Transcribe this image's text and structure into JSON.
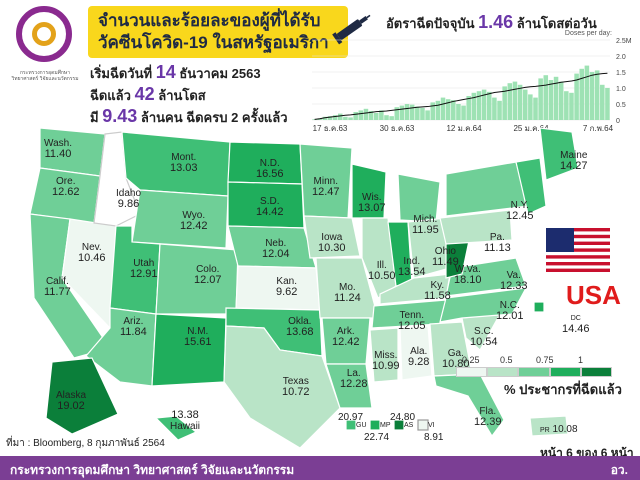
{
  "logo": {
    "caption": "กระทรวงการอุดมศึกษา วิทยาศาสตร์ วิจัยและนวัตกรรม"
  },
  "title": {
    "line1": "จำนวนและร้อยละของผู้ที่ได้รับ",
    "line2": "วัคซีนโควิด-19 ในสหรัฐอเมริกา"
  },
  "rate": {
    "prefix": "อัตราฉีดปัจจุบัน",
    "value": "1.46",
    "suffix": "ล้านโดสต่อวัน"
  },
  "stats": {
    "start_prefix": "เริ่มฉีดวันที่",
    "start_day": "14",
    "start_suffix": "ธันวาคม 2563",
    "doses_prefix": "ฉีดแล้ว",
    "doses_value": "42",
    "doses_suffix": "ล้านโดส",
    "people_prefix": "มี",
    "people_value": "9.43",
    "people_suffix": "ล้านคน ฉีดครบ 2 ครั้งแล้ว"
  },
  "chart_data": {
    "type": "bar",
    "title": "Doses per day",
    "ylabel": "Doses per day",
    "ytick_labels": [
      "2.5M",
      "2.0",
      "1.5",
      "1.0",
      "0.5",
      "0"
    ],
    "xtick_labels": [
      "17 ธ.ค.63",
      "30 ธ.ค.63",
      "12 ม.ค.64",
      "25 ม.ค.64",
      "7 ก.พ.64"
    ],
    "ylim": [
      0,
      2.5
    ],
    "unit": "million doses",
    "values": [
      0.02,
      0.05,
      0.1,
      0.12,
      0.15,
      0.2,
      0.1,
      0.08,
      0.25,
      0.3,
      0.35,
      0.28,
      0.22,
      0.3,
      0.15,
      0.12,
      0.4,
      0.45,
      0.5,
      0.48,
      0.42,
      0.38,
      0.3,
      0.55,
      0.6,
      0.7,
      0.65,
      0.62,
      0.5,
      0.45,
      0.75,
      0.85,
      0.9,
      0.95,
      0.88,
      0.7,
      0.6,
      1.05,
      1.15,
      1.2,
      1.1,
      0.95,
      0.8,
      0.7,
      1.3,
      1.4,
      1.25,
      1.35,
      1.2,
      0.9,
      0.85,
      1.45,
      1.6,
      1.7,
      1.5,
      1.55,
      1.1,
      1.0
    ],
    "moving_average": [
      0.02,
      0.04,
      0.07,
      0.09,
      0.11,
      0.13,
      0.15,
      0.16,
      0.18,
      0.2,
      0.22,
      0.24,
      0.26,
      0.27,
      0.28,
      0.3,
      0.32,
      0.34,
      0.36,
      0.38,
      0.4,
      0.41,
      0.42,
      0.44,
      0.46,
      0.5,
      0.54,
      0.58,
      0.61,
      0.64,
      0.67,
      0.7,
      0.74,
      0.78,
      0.82,
      0.86,
      0.88,
      0.9,
      0.93,
      0.96,
      0.99,
      1.02,
      1.04,
      1.05,
      1.07,
      1.09,
      1.12,
      1.15,
      1.18,
      1.2,
      1.22,
      1.25,
      1.3,
      1.35,
      1.4,
      1.43,
      1.45,
      1.46
    ]
  },
  "states": [
    {
      "name": "Wash.",
      "value": "11.40"
    },
    {
      "name": "Ore.",
      "value": "12.62"
    },
    {
      "name": "Calif.",
      "value": "11.77"
    },
    {
      "name": "Nev.",
      "value": "10.46"
    },
    {
      "name": "Idaho",
      "value": "9.86"
    },
    {
      "name": "Mont.",
      "value": "13.03"
    },
    {
      "name": "Wyo.",
      "value": "12.42"
    },
    {
      "name": "Utah",
      "value": "12.91"
    },
    {
      "name": "Ariz.",
      "value": "11.84"
    },
    {
      "name": "Colo.",
      "value": "12.07"
    },
    {
      "name": "N.M.",
      "value": "15.61"
    },
    {
      "name": "N.D.",
      "value": "16.56"
    },
    {
      "name": "S.D.",
      "value": "14.42"
    },
    {
      "name": "Neb.",
      "value": "12.04"
    },
    {
      "name": "Kan.",
      "value": "9.62"
    },
    {
      "name": "Okla.",
      "value": "13.68"
    },
    {
      "name": "Texas",
      "value": "10.72"
    },
    {
      "name": "Minn.",
      "value": "12.47"
    },
    {
      "name": "Iowa",
      "value": "10.30"
    },
    {
      "name": "Mo.",
      "value": "11.24"
    },
    {
      "name": "Ark.",
      "value": "12.42"
    },
    {
      "name": "La.",
      "value": "12.28"
    },
    {
      "name": "Wis.",
      "value": "13.07"
    },
    {
      "name": "Ill.",
      "value": "10.50"
    },
    {
      "name": "Ind.",
      "value": "13.54"
    },
    {
      "name": "Mich.",
      "value": "11.95"
    },
    {
      "name": "Ohio",
      "value": "11.49"
    },
    {
      "name": "Ky.",
      "value": "11.58"
    },
    {
      "name": "Tenn.",
      "value": "12.05"
    },
    {
      "name": "Miss.",
      "value": "10.99"
    },
    {
      "name": "Ala.",
      "value": "9.28"
    },
    {
      "name": "Ga.",
      "value": "10.80"
    },
    {
      "name": "Fla.",
      "value": "12.39"
    },
    {
      "name": "S.C.",
      "value": "10.54"
    },
    {
      "name": "N.C.",
      "value": "12.01"
    },
    {
      "name": "Va.",
      "value": "12.33"
    },
    {
      "name": "W.Va.",
      "value": "18.10"
    },
    {
      "name": "Pa.",
      "value": "11.13"
    },
    {
      "name": "N.Y.",
      "value": "12.45"
    },
    {
      "name": "Maine",
      "value": "14.27"
    },
    {
      "name": "Alaska",
      "value": "19.02"
    },
    {
      "name": "Hawaii",
      "value": "13.38"
    },
    {
      "name": "DC",
      "value": "14.46"
    },
    {
      "name": "PR",
      "value": "10.08"
    }
  ],
  "territories": {
    "labels": [
      "GU",
      "MP",
      "AS",
      "VI"
    ],
    "values": [
      "20.97",
      "22.74",
      "24.80",
      "8.91"
    ]
  },
  "legend": {
    "ticks": [
      "0.25",
      "0.5",
      "0.75",
      "1"
    ],
    "colors": [
      "#eef7f1",
      "#b9e4c7",
      "#6fcf97",
      "#1fae5c",
      "#0b7f3a"
    ],
    "title": "% ประชากรที่ฉีดแล้ว"
  },
  "country": "USA",
  "source": "ที่มา : Bloomberg, 8 กุมภาพันธ์ 2564",
  "page": "หน้า 6 ของ 6 หน้า",
  "footer": {
    "left": "กระทรวงการอุดมศึกษา วิทยาศาสตร์ วิจัยและนวัตกรรม",
    "right": "อว."
  }
}
